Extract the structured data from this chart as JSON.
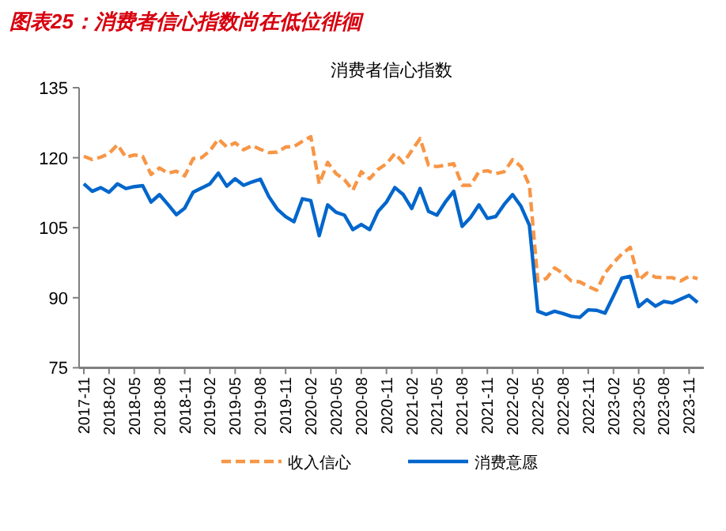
{
  "chart_data": {
    "type": "line",
    "title": "图表25：消费者信心指数尚在低位徘徊",
    "subtitle": "消费者信心指数",
    "categories": [
      "2017-11",
      null,
      null,
      "2018-02",
      null,
      null,
      "2018-05",
      null,
      null,
      "2018-08",
      null,
      null,
      "2018-11",
      null,
      null,
      "2019-02",
      null,
      null,
      "2019-05",
      null,
      null,
      "2019-08",
      null,
      null,
      "2019-11",
      null,
      null,
      "2020-02",
      null,
      null,
      "2020-05",
      null,
      null,
      "2020-08",
      null,
      null,
      "2020-11",
      null,
      null,
      "2021-02",
      null,
      null,
      "2021-05",
      null,
      null,
      "2021-08",
      null,
      null,
      "2021-11",
      null,
      null,
      "2022-02",
      null,
      null,
      "2022-05",
      null,
      null,
      "2022-08",
      null,
      null,
      "2022-11",
      null,
      null,
      "2023-02",
      null,
      null,
      "2023-05",
      null,
      null,
      "2023-08",
      null,
      null,
      "2023-11",
      null
    ],
    "series": [
      {
        "name": "收入信心",
        "color": "#f79646",
        "line_style": "dashed",
        "values": [
          120.3,
          119.6,
          120.1,
          120.9,
          122.8,
          120.1,
          120.6,
          120.3,
          116.4,
          117.8,
          116.7,
          117.1,
          116.1,
          119.8,
          120.0,
          121.5,
          124.0,
          122.3,
          123.2,
          121.7,
          122.6,
          121.8,
          121.1,
          121.2,
          122.3,
          122.4,
          123.5,
          124.5,
          114.4,
          119.0,
          116.6,
          115.3,
          113.0,
          117.0,
          115.5,
          117.5,
          118.7,
          120.9,
          118.9,
          121.5,
          124.1,
          118.4,
          118.1,
          118.4,
          118.7,
          114.1,
          114.1,
          117.0,
          117.2,
          116.6,
          117.0,
          119.6,
          118.1,
          114.1,
          93.6,
          94.1,
          96.4,
          95.2,
          93.6,
          93.4,
          92.4,
          91.6,
          95.3,
          97.5,
          99.4,
          100.8,
          93.8,
          95.3,
          94.4,
          94.3,
          94.3,
          93.6,
          94.6,
          94.1
        ]
      },
      {
        "name": "消费意愿",
        "color": "#0066cc",
        "line_style": "solid",
        "values": [
          114.4,
          112.8,
          113.6,
          112.6,
          114.4,
          113.4,
          113.8,
          114.0,
          110.5,
          112.1,
          110.0,
          107.8,
          109.2,
          112.6,
          113.5,
          114.4,
          116.7,
          113.9,
          115.5,
          114.1,
          114.8,
          115.4,
          111.7,
          109.0,
          107.4,
          106.3,
          111.2,
          110.8,
          103.3,
          109.9,
          108.3,
          107.7,
          104.6,
          105.7,
          104.6,
          108.5,
          110.5,
          113.6,
          112.1,
          109.1,
          113.4,
          108.5,
          107.7,
          110.5,
          112.8,
          105.3,
          107.2,
          109.9,
          107.0,
          107.4,
          110.0,
          112.1,
          109.6,
          105.5,
          87.1,
          86.4,
          87.1,
          86.6,
          86.0,
          85.8,
          87.4,
          87.3,
          86.7,
          90.4,
          94.2,
          94.6,
          88.1,
          89.6,
          88.2,
          89.2,
          88.9,
          89.7,
          90.5,
          89.0
        ]
      }
    ],
    "ylim": [
      75,
      135
    ],
    "yticks": [
      75,
      90,
      105,
      120,
      135
    ],
    "legend": "bottom"
  }
}
